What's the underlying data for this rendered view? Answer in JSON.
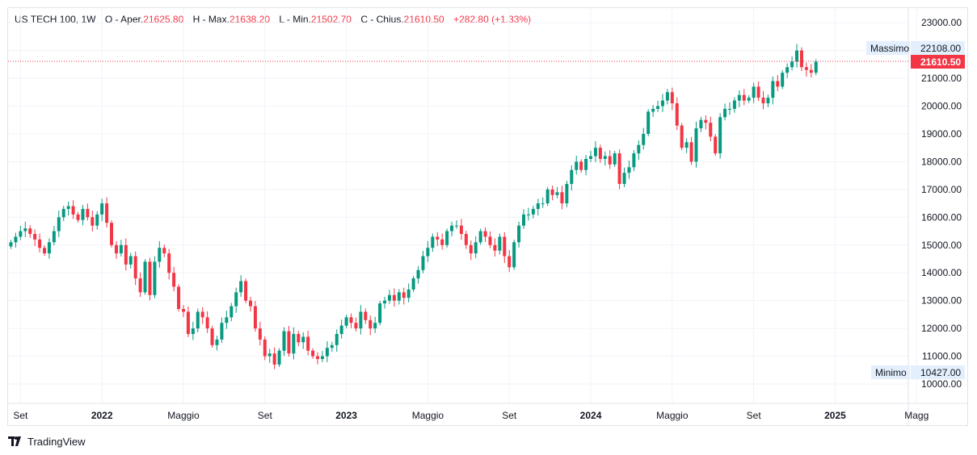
{
  "legend": {
    "symbol": "US TECH 100, 1W",
    "o_label": "O - Aper.",
    "o_value": "21625.80",
    "h_label": "H - Max.",
    "h_value": "21638.20",
    "l_label": "L - Min.",
    "l_value": "21502.70",
    "c_label": "C - Chius.",
    "c_value": "21610.50",
    "change": "+282.80 (+1.33%)"
  },
  "tags": {
    "max_label": "Massimo",
    "max_value": "22108.00",
    "min_label": "Minimo",
    "min_value": "10427.00",
    "last_value": "21610.50"
  },
  "branding": {
    "logo_text": "TradingView"
  },
  "colors": {
    "up": "#089981",
    "down": "#f23645",
    "grid": "#f0f3fa",
    "last_price": "#f23645",
    "tag_bg": "#e3effd"
  },
  "chart_data": {
    "type": "candlestick",
    "title": "US TECH 100, 1W",
    "ylim": [
      9600,
      23500
    ],
    "y_ticks": [
      "10000.00",
      "11000.00",
      "12000.00",
      "13000.00",
      "14000.00",
      "15000.00",
      "16000.00",
      "17000.00",
      "18000.00",
      "19000.00",
      "20000.00",
      "21000.00",
      "22000.00",
      "23000.00"
    ],
    "x_ticks": [
      {
        "label": "Set",
        "index": 2,
        "year": false
      },
      {
        "label": "2022",
        "index": 19,
        "year": true
      },
      {
        "label": "Maggio",
        "index": 36,
        "year": false
      },
      {
        "label": "Set",
        "index": 53,
        "year": false
      },
      {
        "label": "2023",
        "index": 70,
        "year": true
      },
      {
        "label": "Maggio",
        "index": 87,
        "year": false
      },
      {
        "label": "Set",
        "index": 104,
        "year": false
      },
      {
        "label": "2024",
        "index": 121,
        "year": true
      },
      {
        "label": "Maggio",
        "index": 138,
        "year": false
      },
      {
        "label": "Set",
        "index": 155,
        "year": false
      },
      {
        "label": "2025",
        "index": 172,
        "year": true
      },
      {
        "label": "Magg",
        "index": 189,
        "year": false
      }
    ],
    "closes": [
      15100,
      15300,
      15500,
      15600,
      15400,
      15200,
      14900,
      14700,
      15100,
      15500,
      16000,
      16300,
      16400,
      16100,
      15900,
      16300,
      16000,
      15700,
      16100,
      16500,
      15800,
      15000,
      14700,
      15000,
      14300,
      14600,
      13800,
      13300,
      14400,
      13200,
      14400,
      14900,
      14700,
      14000,
      13500,
      12700,
      12600,
      11800,
      12000,
      12600,
      12400,
      12000,
      11400,
      11600,
      12200,
      12400,
      12800,
      13300,
      13700,
      13000,
      12800,
      12000,
      11600,
      11000,
      11100,
      10700,
      11200,
      11900,
      11100,
      11800,
      11500,
      11700,
      11200,
      11000,
      10900,
      11000,
      11300,
      11400,
      11800,
      12100,
      12400,
      12200,
      12000,
      12600,
      12300,
      12000,
      12200,
      12900,
      13000,
      13200,
      13000,
      13300,
      13100,
      13400,
      13800,
      14100,
      14600,
      14900,
      15300,
      15200,
      15000,
      15500,
      15700,
      15700,
      15400,
      15000,
      14700,
      15100,
      15500,
      15300,
      15000,
      14800,
      15300,
      14600,
      14200,
      15100,
      15700,
      16100,
      16100,
      16300,
      16500,
      16500,
      17000,
      16800,
      16900,
      16500,
      17200,
      17700,
      18000,
      17700,
      18100,
      18200,
      18500,
      18100,
      18200,
      17900,
      18300,
      17200,
      17600,
      17800,
      18300,
      18600,
      19000,
      19800,
      19900,
      20000,
      20200,
      20500,
      20100,
      19300,
      18500,
      18700,
      18000,
      19200,
      19500,
      19400,
      18900,
      18300,
      19600,
      19900,
      19900,
      20200,
      20400,
      20200,
      20300,
      20700,
      20300,
      20100,
      20300,
      20900,
      20700,
      21200,
      21400,
      21600,
      22000,
      21400,
      21300,
      21200,
      21600
    ],
    "range_max": 22108.0,
    "range_min": 10427.0,
    "last": 21610.5
  }
}
